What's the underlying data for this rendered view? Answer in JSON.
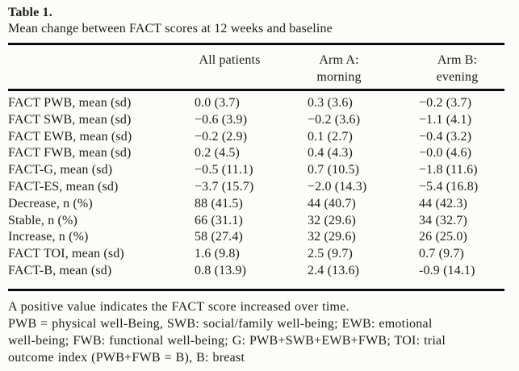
{
  "colors": {
    "background": "#fcfcfa",
    "text": "#1d1d1b",
    "rule": "#0b0b0b"
  },
  "table": {
    "label": "Table 1.",
    "caption": "Mean change between FACT scores at 12 weeks and baseline",
    "columns": [
      {
        "line1": "All patients",
        "line2": ""
      },
      {
        "line1": "Arm A:",
        "line2": "morning"
      },
      {
        "line1": "Arm B:",
        "line2": "evening"
      }
    ],
    "rows": [
      {
        "label": "FACT PWB, mean (sd)",
        "all_patients": "0.0 (3.7)",
        "arm_a": "0.3 (3.6)",
        "arm_b": "−0.2 (3.7)"
      },
      {
        "label": "FACT SWB, mean (sd)",
        "all_patients": "−0.6 (3.9)",
        "arm_a": "−0.2 (3.6)",
        "arm_b": "−1.1 (4.1)"
      },
      {
        "label": "FACT EWB, mean (sd)",
        "all_patients": "−0.2 (2.9)",
        "arm_a": "0.1 (2.7)",
        "arm_b": "−0.4 (3.2)"
      },
      {
        "label": "FACT FWB, mean (sd)",
        "all_patients": "0.2 (4.5)",
        "arm_a": "0.4 (4.3)",
        "arm_b": "−0.0 (4.6)"
      },
      {
        "label": "FACT-G, mean (sd)",
        "all_patients": "−0.5 (11.1)",
        "arm_a": "0.7 (10.5)",
        "arm_b": "−1.8 (11.6)"
      },
      {
        "label": "FACT-ES, mean (sd)",
        "all_patients": "−3.7 (15.7)",
        "arm_a": "−2.0 (14.3)",
        "arm_b": "−5.4 (16.8)"
      },
      {
        "label": "Decrease, n (%)",
        "all_patients": "88 (41.5)",
        "arm_a": "44 (40.7)",
        "arm_b": "44 (42.3)"
      },
      {
        "label": "Stable, n (%)",
        "all_patients": "66 (31.1)",
        "arm_a": "32 (29.6)",
        "arm_b": "34 (32.7)"
      },
      {
        "label": "Increase, n (%)",
        "all_patients": "58 (27.4)",
        "arm_a": "32 (29.6)",
        "arm_b": "26 (25.0)"
      },
      {
        "label": "FACT TOI, mean (sd)",
        "all_patients": "1.6 (9.8)",
        "arm_a": "2.5 (9.7)",
        "arm_b": "0.7 (9.7)"
      },
      {
        "label": "FACT-B, mean (sd)",
        "all_patients": "0.8 (13.9)",
        "arm_a": "2.4 (13.6)",
        "arm_b": "-0.9 (14.1)"
      }
    ]
  },
  "footnotes": {
    "lines": [
      "A positive value indicates the FACT score increased over time.",
      "PWB = physical well-Being, SWB: social/family well-being; EWB: emotional",
      "well-being; FWB: functional well-being; G: PWB+SWB+EWB+FWB; TOI: trial",
      "outcome index (PWB+FWB = B), B: breast"
    ]
  }
}
